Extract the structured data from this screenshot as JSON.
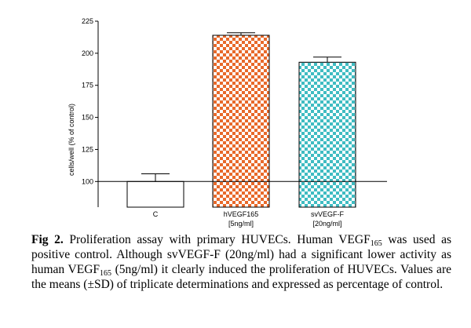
{
  "chart_data": {
    "type": "bar",
    "categories": [
      {
        "main": "C",
        "sub": ""
      },
      {
        "main": "hVEGF165",
        "sub": "[5ng/ml]"
      },
      {
        "main": "svVEGF-F",
        "sub": "[20ng/ml]"
      }
    ],
    "values": [
      100,
      214,
      193
    ],
    "error_upper": [
      106,
      216,
      197
    ],
    "baseline": 100,
    "ylabel": "cells/well (% of control)",
    "ylim": [
      80,
      225
    ],
    "yticks": [
      100,
      125,
      150,
      175,
      200,
      225
    ],
    "bar_colors": [
      "#ffffff",
      "#e8692a",
      "#3fbcc2"
    ],
    "bar_patterns": [
      "none",
      "checker",
      "checker"
    ]
  },
  "caption": {
    "label": "Fig 2.",
    "parts": [
      " Proliferation assay with primary HUVECs. Human VEGF",
      "165",
      " was used as positive control. Although svVEGF-F (20ng/ml) had a significant lower activity as human VEGF",
      "165",
      " (5ng/ml) it clearly induced the proliferation of HUVECs. Values are the means (±SD) of triplicate determinations and expressed as percentage of control."
    ]
  }
}
